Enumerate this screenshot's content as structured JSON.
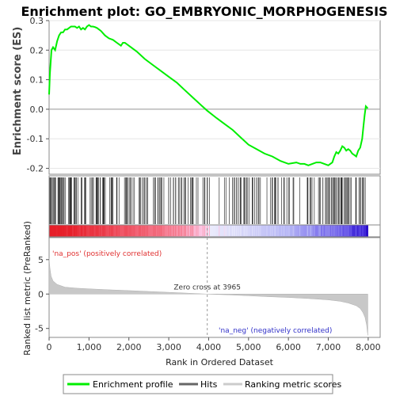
{
  "chart_data": {
    "type": "line",
    "title": "Enrichment plot: GO_EMBRYONIC_MORPHOGENESIS",
    "xlabel": "Rank in Ordered Dataset",
    "ylabel_top": "Enrichment score (ES)",
    "ylabel_bottom": "Ranked list metric (PreRanked)",
    "xlim": [
      0,
      8300
    ],
    "x_ticks": [
      0,
      1000,
      2000,
      3000,
      4000,
      5000,
      6000,
      7000,
      8000
    ],
    "x_tick_labels": [
      "0",
      "1,000",
      "2,000",
      "3,000",
      "4,000",
      "5,000",
      "6,000",
      "7,000",
      "8,000"
    ],
    "es_ylim": [
      -0.22,
      0.3
    ],
    "es_ticks": [
      0.3,
      0.2,
      0.1,
      0.0,
      -0.1,
      -0.2
    ],
    "es_tick_labels": [
      "0.3",
      "0.2",
      "0.1",
      "0.0",
      "-0.1",
      "-0.2"
    ],
    "metric_ylim": [
      -6.3,
      8.2
    ],
    "metric_ticks": [
      5,
      0,
      -5
    ],
    "metric_tick_labels": [
      "5",
      "0",
      "-5"
    ],
    "zero_cross": 3965,
    "zero_cross_label": "Zero cross at 3965",
    "pos_label": "'na_pos' (positively correlated)",
    "neg_label": "'na_neg' (negatively correlated)",
    "n_genes": 7990,
    "enrichment_profile": {
      "name": "Enrichment profile",
      "color": "#00ee00",
      "x": [
        0,
        20,
        60,
        100,
        150,
        200,
        250,
        300,
        350,
        400,
        450,
        500,
        550,
        600,
        650,
        700,
        750,
        800,
        850,
        900,
        950,
        1000,
        1050,
        1100,
        1150,
        1200,
        1250,
        1300,
        1400,
        1500,
        1600,
        1700,
        1800,
        1850,
        1900,
        2000,
        2200,
        2400,
        2600,
        2800,
        3000,
        3200,
        3400,
        3600,
        3800,
        3965,
        4200,
        4400,
        4600,
        4800,
        5000,
        5200,
        5400,
        5600,
        5800,
        6000,
        6200,
        6300,
        6400,
        6500,
        6600,
        6700,
        6800,
        6900,
        7000,
        7100,
        7150,
        7200,
        7250,
        7300,
        7350,
        7400,
        7450,
        7500,
        7550,
        7600,
        7650,
        7700,
        7750,
        7800,
        7850,
        7880,
        7910,
        7940,
        7990
      ],
      "y": [
        0.05,
        0.12,
        0.2,
        0.21,
        0.2,
        0.23,
        0.25,
        0.26,
        0.26,
        0.27,
        0.27,
        0.275,
        0.28,
        0.28,
        0.28,
        0.275,
        0.28,
        0.27,
        0.275,
        0.27,
        0.28,
        0.285,
        0.28,
        0.28,
        0.278,
        0.275,
        0.27,
        0.265,
        0.25,
        0.24,
        0.235,
        0.225,
        0.215,
        0.225,
        0.225,
        0.215,
        0.195,
        0.17,
        0.15,
        0.13,
        0.11,
        0.09,
        0.065,
        0.04,
        0.015,
        -0.005,
        -0.03,
        -0.05,
        -0.07,
        -0.095,
        -0.12,
        -0.135,
        -0.15,
        -0.16,
        -0.175,
        -0.185,
        -0.18,
        -0.185,
        -0.185,
        -0.19,
        -0.185,
        -0.18,
        -0.18,
        -0.185,
        -0.19,
        -0.18,
        -0.16,
        -0.145,
        -0.15,
        -0.14,
        -0.125,
        -0.13,
        -0.14,
        -0.135,
        -0.14,
        -0.15,
        -0.155,
        -0.16,
        -0.14,
        -0.13,
        -0.1,
        -0.06,
        -0.02,
        0.01,
        0.003
      ]
    },
    "hits_name": "Hits",
    "metric_name": "Ranking metric scores",
    "metric_curve": {
      "x": [
        0,
        20,
        50,
        100,
        200,
        400,
        700,
        1000,
        1500,
        2000,
        2500,
        3000,
        3500,
        3965,
        4500,
        5000,
        5500,
        6000,
        6500,
        7000,
        7300,
        7500,
        7700,
        7800,
        7870,
        7920,
        7960,
        7990
      ],
      "y": [
        5.2,
        3.8,
        2.6,
        1.9,
        1.4,
        1.0,
        0.85,
        0.75,
        0.62,
        0.5,
        0.38,
        0.25,
        0.12,
        0.0,
        -0.12,
        -0.25,
        -0.38,
        -0.5,
        -0.65,
        -0.85,
        -1.05,
        -1.3,
        -1.7,
        -2.1,
        -2.7,
        -3.4,
        -4.5,
        -6.0
      ]
    },
    "legend": [
      "Enrichment profile",
      "Hits",
      "Ranking metric scores"
    ]
  }
}
